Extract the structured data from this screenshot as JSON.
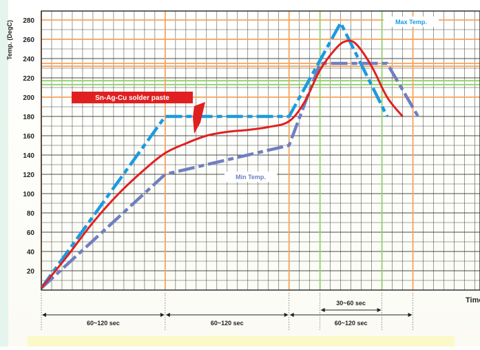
{
  "chart_data": {
    "type": "line",
    "title": "",
    "ylabel": "Temp. (DegC)",
    "xlabel": "Time",
    "ylim": [
      0,
      290
    ],
    "y_ticks": [
      20,
      40,
      60,
      80,
      100,
      120,
      140,
      160,
      180,
      200,
      220,
      240,
      260,
      280
    ],
    "grid": true,
    "x_unit": "sec",
    "x_range": [
      0,
      410
    ],
    "reference_lines": {
      "horizontal": [
        {
          "y": 280,
          "color": "#f5a35c"
        },
        {
          "y": 260,
          "color": "#f5a35c"
        },
        {
          "y": 235,
          "color": "#f5a35c"
        },
        {
          "y": 232,
          "color": "#f5a35c"
        },
        {
          "y": 217,
          "color": "#8fd16a"
        },
        {
          "y": 213,
          "color": "#8fd16a"
        },
        {
          "y": 200,
          "color": "#f5a35c"
        }
      ],
      "vertical": [
        {
          "x": 0,
          "color": "#f5a35c"
        },
        {
          "x": 120,
          "color": "#f5a35c"
        },
        {
          "x": 240,
          "color": "#f5a35c"
        },
        {
          "x": 360,
          "color": "#f5a35c"
        },
        {
          "x": 270,
          "color": "#8fd16a"
        },
        {
          "x": 330,
          "color": "#8fd16a"
        }
      ]
    },
    "series": [
      {
        "name": "Sn-Ag-Cu solder paste",
        "color": "#e02020",
        "style": "solid",
        "points": [
          [
            0,
            2
          ],
          [
            25,
            35
          ],
          [
            50,
            70
          ],
          [
            75,
            100
          ],
          [
            100,
            125
          ],
          [
            120,
            142
          ],
          [
            140,
            152
          ],
          [
            160,
            160
          ],
          [
            180,
            164
          ],
          [
            200,
            166
          ],
          [
            220,
            169
          ],
          [
            240,
            175
          ],
          [
            255,
            195
          ],
          [
            270,
            228
          ],
          [
            285,
            250
          ],
          [
            295,
            258
          ],
          [
            305,
            255
          ],
          [
            320,
            232
          ],
          [
            335,
            200
          ],
          [
            350,
            180
          ]
        ]
      },
      {
        "name": "Max Temp.",
        "color": "#1a9be0",
        "style": "dash",
        "points": [
          [
            0,
            2
          ],
          [
            120,
            180
          ],
          [
            240,
            180
          ],
          [
            290,
            277
          ],
          [
            335,
            180
          ]
        ]
      },
      {
        "name": "Min Temp.",
        "color": "#6f7fc0",
        "style": "dash",
        "points": [
          [
            0,
            2
          ],
          [
            120,
            120
          ],
          [
            240,
            150
          ],
          [
            270,
            235
          ],
          [
            335,
            235
          ],
          [
            365,
            180
          ]
        ]
      }
    ],
    "annotations": [
      {
        "text": "Sn-Ag-Cu solder paste",
        "color": "#ffffff",
        "background": "#e02020"
      },
      {
        "text": "Max Temp.",
        "color": "#1a9be0",
        "background": "#ffffff"
      },
      {
        "text": "Min Temp.",
        "color": "#6f7fc0",
        "background": "#ffffff"
      }
    ],
    "intervals": [
      {
        "label": "60~120 sec",
        "x0": 0,
        "x1": 120
      },
      {
        "label": "60~120 sec",
        "x0": 120,
        "x1": 240
      },
      {
        "label": "60~120 sec",
        "x0": 240,
        "x1": 360
      },
      {
        "label": "30~60 sec",
        "x0": 270,
        "x1": 330
      }
    ]
  }
}
